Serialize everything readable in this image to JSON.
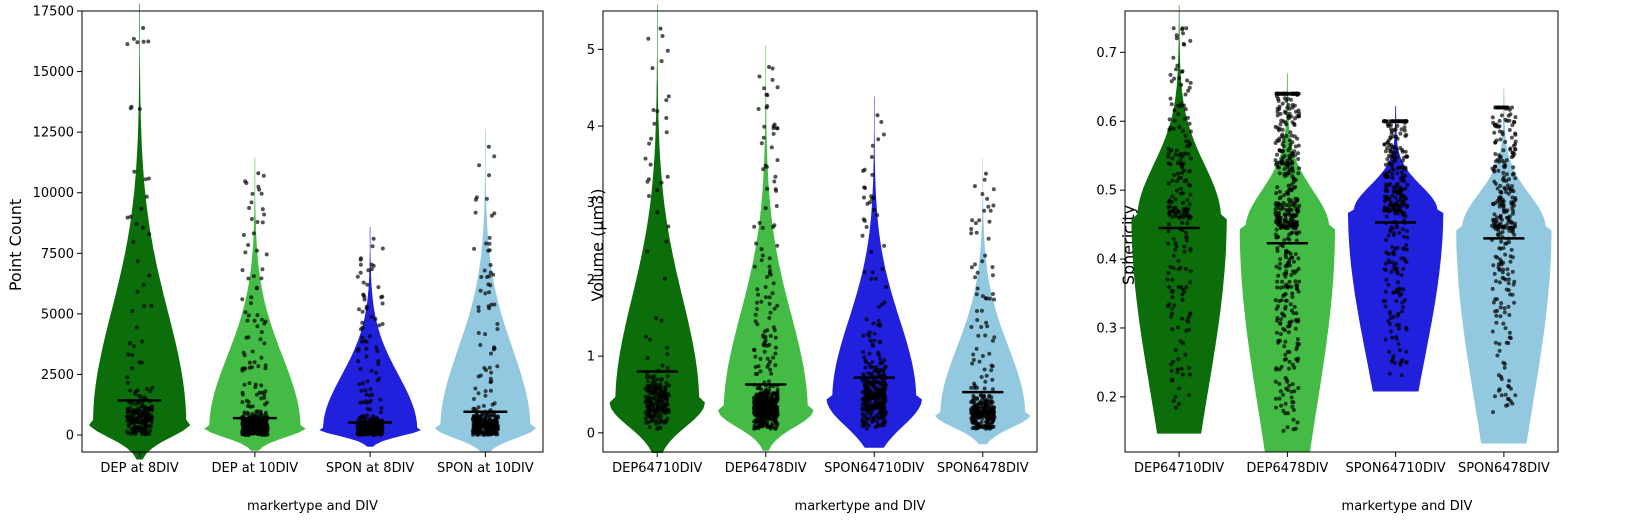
{
  "chart_data": [
    {
      "type": "violin",
      "xlabel": "markertype and DIV",
      "ylabel": "Point Count",
      "ylim": [
        -700,
        17500
      ],
      "yticks": [
        0,
        2500,
        5000,
        7500,
        10000,
        12500,
        15000,
        17500
      ],
      "categories": [
        "DEP at 8DIV",
        "DEP at 10DIV",
        "SPON at 8DIV",
        "SPON at 10DIV"
      ],
      "colors": [
        "#0b6e0b",
        "#44bb44",
        "#2020dd",
        "#92c9e0"
      ],
      "means": [
        1430,
        700,
        520,
        960
      ],
      "mins": [
        0,
        0,
        0,
        0
      ],
      "maxes": [
        16800,
        10800,
        8100,
        11900
      ],
      "sample_counts": [
        220,
        480,
        330,
        300
      ],
      "distribution_modes": [
        600,
        350,
        300,
        350
      ]
    },
    {
      "type": "violin",
      "xlabel": "markertype and DIV",
      "ylabel": "Volume (µm3)",
      "ylim": [
        -0.25,
        5.5
      ],
      "yticks": [
        0,
        1,
        2,
        3,
        4,
        5
      ],
      "categories": [
        "DEP64710DIV",
        "DEP6478DIV",
        "SPON64710DIV",
        "SPON6478DIV"
      ],
      "colors": [
        "#0b6e0b",
        "#44bb44",
        "#2020dd",
        "#92c9e0"
      ],
      "means": [
        0.8,
        0.63,
        0.72,
        0.53
      ],
      "mins": [
        0.05,
        0.05,
        0.05,
        0.05
      ],
      "maxes": [
        5.27,
        4.77,
        4.14,
        3.38
      ],
      "sample_counts": [
        220,
        480,
        330,
        300
      ],
      "distribution_modes": [
        0.4,
        0.3,
        0.45,
        0.25
      ]
    },
    {
      "type": "violin",
      "xlabel": "markertype and DIV",
      "ylabel": "Sphericity",
      "ylim": [
        0.12,
        0.76
      ],
      "yticks": [
        0.2,
        0.3,
        0.4,
        0.5,
        0.6,
        0.7
      ],
      "categories": [
        "DEP64710DIV",
        "DEP6478DIV",
        "SPON64710DIV",
        "SPON6478DIV"
      ],
      "colors": [
        "#0b6e0b",
        "#44bb44",
        "#2020dd",
        "#92c9e0"
      ],
      "means": [
        0.445,
        0.423,
        0.453,
        0.43
      ],
      "mins": [
        0.18,
        0.15,
        0.23,
        0.16
      ],
      "maxes": [
        0.735,
        0.64,
        0.6,
        0.62
      ],
      "sample_counts": [
        220,
        480,
        330,
        300
      ],
      "distribution_modes": [
        0.46,
        0.445,
        0.47,
        0.445
      ]
    }
  ]
}
